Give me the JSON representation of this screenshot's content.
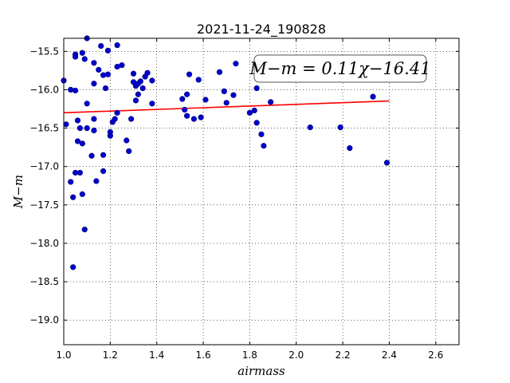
{
  "chart_data": {
    "type": "scatter",
    "title": "2021-11-24_190828",
    "xlabel": "airmass",
    "ylabel": "M−m",
    "xlim": [
      1.0,
      2.7
    ],
    "ylim": [
      -19.32,
      -15.33
    ],
    "y_inverted": true,
    "x_ticks": [
      1.0,
      1.2,
      1.4,
      1.6,
      1.8,
      2.0,
      2.2,
      2.4,
      2.6
    ],
    "x_tick_labels": [
      "1.0",
      "1.2",
      "1.4",
      "1.6",
      "1.8",
      "2.0",
      "2.2",
      "2.4",
      "2.6"
    ],
    "y_ticks": [
      -15.5,
      -16.0,
      -16.5,
      -17.0,
      -17.5,
      -18.0,
      -18.5,
      -19.0
    ],
    "y_tick_labels": [
      "−15.5",
      "−16.0",
      "−16.5",
      "−17.0",
      "−17.5",
      "−18.0",
      "−18.5",
      "−19.0"
    ],
    "grid": true,
    "annotation": "M−m = 0.11χ−16.41",
    "annotation_placement": "top-right",
    "point_color": "#0000cc",
    "fit_color": "#ff0000",
    "fit": {
      "slope": 0.11,
      "intercept": -16.41,
      "x_range": [
        1.0,
        2.4
      ]
    },
    "points": [
      {
        "x": 1.0,
        "y": -15.88
      },
      {
        "x": 1.01,
        "y": -16.45
      },
      {
        "x": 1.03,
        "y": -16.0
      },
      {
        "x": 1.03,
        "y": -17.2
      },
      {
        "x": 1.04,
        "y": -17.4
      },
      {
        "x": 1.04,
        "y": -18.31
      },
      {
        "x": 1.05,
        "y": -15.54
      },
      {
        "x": 1.05,
        "y": -15.57
      },
      {
        "x": 1.05,
        "y": -16.01
      },
      {
        "x": 1.05,
        "y": -17.08
      },
      {
        "x": 1.06,
        "y": -16.4
      },
      {
        "x": 1.06,
        "y": -16.67
      },
      {
        "x": 1.07,
        "y": -17.08
      },
      {
        "x": 1.07,
        "y": -16.5
      },
      {
        "x": 1.08,
        "y": -15.52
      },
      {
        "x": 1.08,
        "y": -16.7
      },
      {
        "x": 1.08,
        "y": -17.36
      },
      {
        "x": 1.09,
        "y": -15.6
      },
      {
        "x": 1.09,
        "y": -17.82
      },
      {
        "x": 1.1,
        "y": -15.33
      },
      {
        "x": 1.1,
        "y": -16.18
      },
      {
        "x": 1.1,
        "y": -16.5
      },
      {
        "x": 1.12,
        "y": -16.86
      },
      {
        "x": 1.13,
        "y": -15.65
      },
      {
        "x": 1.13,
        "y": -15.92
      },
      {
        "x": 1.13,
        "y": -16.38
      },
      {
        "x": 1.13,
        "y": -16.53
      },
      {
        "x": 1.14,
        "y": -17.19
      },
      {
        "x": 1.15,
        "y": -15.74
      },
      {
        "x": 1.16,
        "y": -15.43
      },
      {
        "x": 1.17,
        "y": -16.85
      },
      {
        "x": 1.17,
        "y": -17.06
      },
      {
        "x": 1.17,
        "y": -15.81
      },
      {
        "x": 1.18,
        "y": -15.98
      },
      {
        "x": 1.19,
        "y": -15.49
      },
      {
        "x": 1.19,
        "y": -15.8
      },
      {
        "x": 1.2,
        "y": -16.55
      },
      {
        "x": 1.2,
        "y": -16.6
      },
      {
        "x": 1.21,
        "y": -16.42
      },
      {
        "x": 1.22,
        "y": -16.38
      },
      {
        "x": 1.23,
        "y": -15.42
      },
      {
        "x": 1.23,
        "y": -15.7
      },
      {
        "x": 1.23,
        "y": -16.3
      },
      {
        "x": 1.25,
        "y": -15.68
      },
      {
        "x": 1.27,
        "y": -16.66
      },
      {
        "x": 1.28,
        "y": -16.8
      },
      {
        "x": 1.29,
        "y": -16.38
      },
      {
        "x": 1.3,
        "y": -15.79
      },
      {
        "x": 1.3,
        "y": -15.9
      },
      {
        "x": 1.31,
        "y": -16.14
      },
      {
        "x": 1.31,
        "y": -15.95
      },
      {
        "x": 1.32,
        "y": -16.06
      },
      {
        "x": 1.32,
        "y": -15.92
      },
      {
        "x": 1.33,
        "y": -15.89
      },
      {
        "x": 1.34,
        "y": -15.98
      },
      {
        "x": 1.35,
        "y": -15.83
      },
      {
        "x": 1.36,
        "y": -15.78
      },
      {
        "x": 1.38,
        "y": -15.88
      },
      {
        "x": 1.38,
        "y": -16.18
      },
      {
        "x": 1.51,
        "y": -16.12
      },
      {
        "x": 1.52,
        "y": -16.26
      },
      {
        "x": 1.53,
        "y": -16.06
      },
      {
        "x": 1.53,
        "y": -16.34
      },
      {
        "x": 1.54,
        "y": -15.8
      },
      {
        "x": 1.56,
        "y": -16.38
      },
      {
        "x": 1.58,
        "y": -15.87
      },
      {
        "x": 1.59,
        "y": -16.36
      },
      {
        "x": 1.61,
        "y": -16.13
      },
      {
        "x": 1.67,
        "y": -15.77
      },
      {
        "x": 1.69,
        "y": -16.02
      },
      {
        "x": 1.7,
        "y": -16.17
      },
      {
        "x": 1.73,
        "y": -16.07
      },
      {
        "x": 1.74,
        "y": -15.66
      },
      {
        "x": 1.8,
        "y": -16.3
      },
      {
        "x": 1.82,
        "y": -16.27
      },
      {
        "x": 1.83,
        "y": -15.98
      },
      {
        "x": 1.83,
        "y": -16.43
      },
      {
        "x": 1.85,
        "y": -16.58
      },
      {
        "x": 1.86,
        "y": -16.73
      },
      {
        "x": 1.89,
        "y": -16.16
      },
      {
        "x": 2.06,
        "y": -16.49
      },
      {
        "x": 2.19,
        "y": -16.49
      },
      {
        "x": 2.23,
        "y": -16.76
      },
      {
        "x": 2.33,
        "y": -16.09
      },
      {
        "x": 2.39,
        "y": -16.95
      }
    ]
  }
}
